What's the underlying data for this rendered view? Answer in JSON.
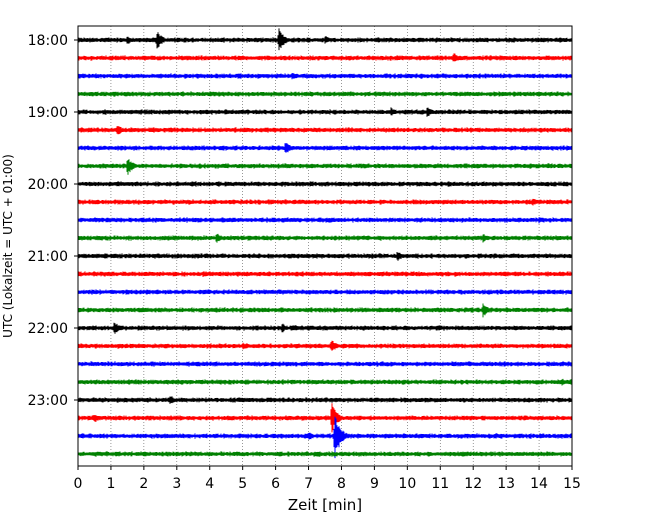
{
  "chart_data": {
    "type": "line",
    "xlabel": "Zeit  [min]",
    "ylabel": "UTC (Lokalzeit = UTC + 01:00)",
    "xlim": [
      0,
      15
    ],
    "x_ticks": [
      0,
      1,
      2,
      3,
      4,
      5,
      6,
      7,
      8,
      9,
      10,
      11,
      12,
      13,
      14,
      15
    ],
    "x_tick_labels": [
      "0",
      "1",
      "2",
      "3",
      "4",
      "5",
      "6",
      "7",
      "8",
      "9",
      "10",
      "11",
      "12",
      "13",
      "14",
      "15"
    ],
    "grid": "vertical dotted",
    "trace_colors": [
      "#000000",
      "#ff0000",
      "#0000ff",
      "#008000"
    ],
    "row_labels": [
      "18:00",
      "",
      "",
      "",
      "19:00",
      "",
      "",
      "",
      "20:00",
      "",
      "",
      "",
      "21:00",
      "",
      "",
      "",
      "22:00",
      "",
      "",
      "",
      "23:00",
      "",
      "",
      ""
    ],
    "events": [
      {
        "row": 0,
        "x": 1.5,
        "amp": 5
      },
      {
        "row": 0,
        "x": 2.4,
        "amp": 10
      },
      {
        "row": 0,
        "x": 6.1,
        "amp": 12
      },
      {
        "row": 0,
        "x": 7.5,
        "amp": 5
      },
      {
        "row": 1,
        "x": 11.4,
        "amp": 6
      },
      {
        "row": 2,
        "x": 6.5,
        "amp": 4
      },
      {
        "row": 3,
        "x": 4.0,
        "amp": 3
      },
      {
        "row": 4,
        "x": 9.5,
        "amp": 5
      },
      {
        "row": 4,
        "x": 10.6,
        "amp": 6
      },
      {
        "row": 5,
        "x": 1.2,
        "amp": 6
      },
      {
        "row": 6,
        "x": 6.3,
        "amp": 7
      },
      {
        "row": 7,
        "x": 1.5,
        "amp": 10
      },
      {
        "row": 9,
        "x": 13.8,
        "amp": 5
      },
      {
        "row": 10,
        "x": 14.0,
        "amp": 4
      },
      {
        "row": 11,
        "x": 4.2,
        "amp": 6
      },
      {
        "row": 11,
        "x": 12.3,
        "amp": 5
      },
      {
        "row": 12,
        "x": 9.7,
        "amp": 6
      },
      {
        "row": 13,
        "x": 3.8,
        "amp": 4
      },
      {
        "row": 14,
        "x": 1.5,
        "amp": 3
      },
      {
        "row": 15,
        "x": 12.3,
        "amp": 8
      },
      {
        "row": 16,
        "x": 1.1,
        "amp": 7
      },
      {
        "row": 16,
        "x": 6.2,
        "amp": 5
      },
      {
        "row": 17,
        "x": 5.0,
        "amp": 4
      },
      {
        "row": 17,
        "x": 7.7,
        "amp": 7
      },
      {
        "row": 19,
        "x": 14.7,
        "amp": 4
      },
      {
        "row": 20,
        "x": 2.8,
        "amp": 5
      },
      {
        "row": 21,
        "x": 0.5,
        "amp": 5
      },
      {
        "row": 21,
        "x": 7.7,
        "amp": 16
      },
      {
        "row": 22,
        "x": 7.8,
        "amp": 24
      },
      {
        "row": 22,
        "x": 7.0,
        "amp": 5
      },
      {
        "row": 23,
        "x": 12.8,
        "amp": 3
      }
    ]
  }
}
